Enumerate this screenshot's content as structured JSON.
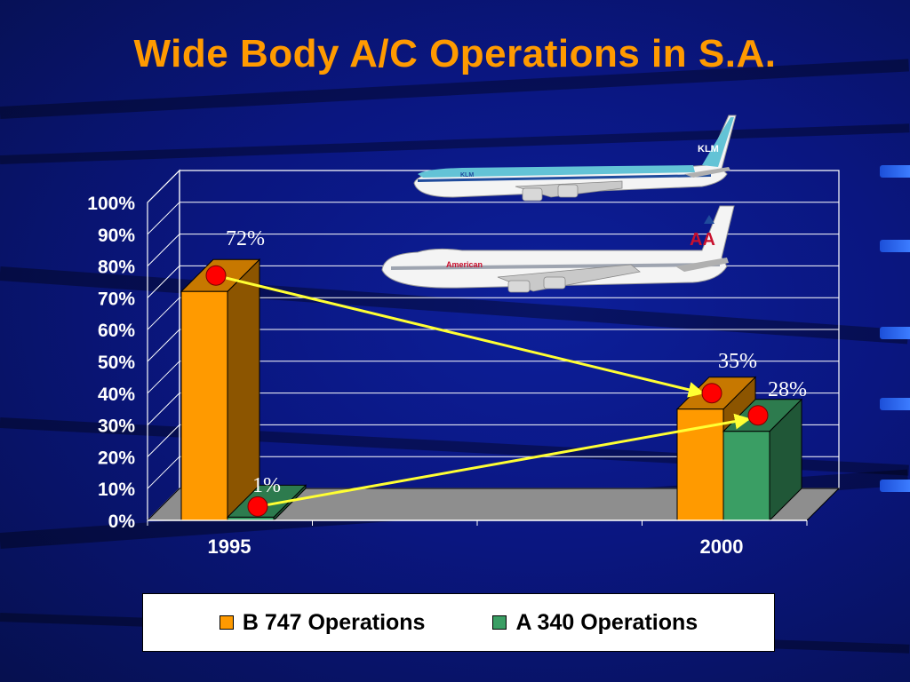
{
  "title": "Wide Body A/C Operations in S.A.",
  "colors": {
    "b747": "#ff9a00",
    "a340": "#3a9e64",
    "background": "#0a1680",
    "arrow": "#ffff33",
    "marker": "#ff0000"
  },
  "chart_data": {
    "type": "bar",
    "categories": [
      "1995",
      "2000"
    ],
    "series": [
      {
        "name": "B 747 Operations",
        "values": [
          72,
          35
        ]
      },
      {
        "name": "A 340 Operations",
        "values": [
          1,
          28
        ]
      }
    ],
    "data_labels": [
      "72%",
      "35%",
      "1%",
      "28%"
    ],
    "y_ticks": [
      "0%",
      "10%",
      "20%",
      "30%",
      "40%",
      "50%",
      "60%",
      "70%",
      "80%",
      "90%",
      "100%"
    ],
    "ylim": [
      0,
      100
    ],
    "grid": true,
    "legend_position": "bottom",
    "xlabel": "",
    "ylabel": ""
  },
  "decorations": {
    "aircraft_top_livery": "KLM",
    "aircraft_bottom_livery": "American",
    "aircraft_bottom_logo": "AA"
  }
}
